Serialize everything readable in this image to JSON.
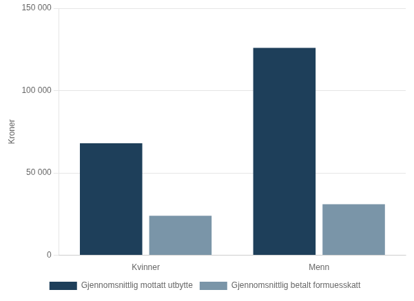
{
  "chart_data": {
    "type": "bar",
    "categories": [
      "Kvinner",
      "Menn"
    ],
    "series": [
      {
        "name": "Gjennomsnittlig mottatt utbytte",
        "color": "#1e3f5a",
        "values": [
          68000,
          126000
        ]
      },
      {
        "name": "Gjennomsnittlig betalt formuesskatt",
        "color": "#7a95a8",
        "values": [
          24000,
          31000
        ]
      }
    ],
    "ylabel": "Kroner",
    "ylim": [
      0,
      150000
    ],
    "yticks": [
      0,
      {
        "value": 50000,
        "label": "50 000"
      },
      {
        "value": 100000,
        "label": "100 000"
      },
      {
        "value": 150000,
        "label": "150 000"
      }
    ],
    "grid": true,
    "legend": "bottom"
  }
}
